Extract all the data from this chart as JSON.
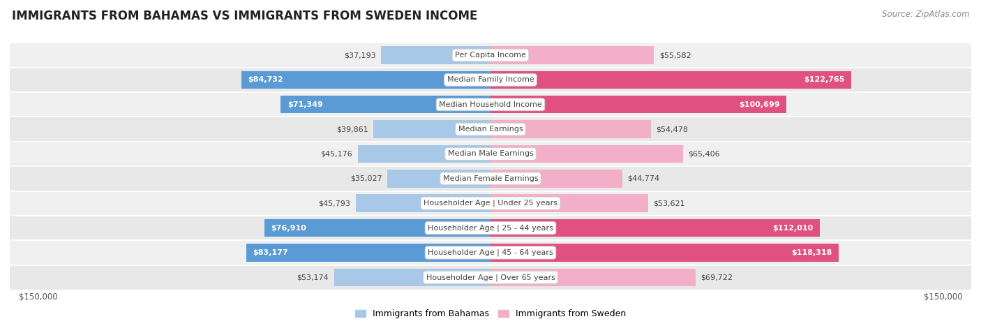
{
  "title": "IMMIGRANTS FROM BAHAMAS VS IMMIGRANTS FROM SWEDEN INCOME",
  "source": "Source: ZipAtlas.com",
  "categories": [
    "Per Capita Income",
    "Median Family Income",
    "Median Household Income",
    "Median Earnings",
    "Median Male Earnings",
    "Median Female Earnings",
    "Householder Age | Under 25 years",
    "Householder Age | 25 - 44 years",
    "Householder Age | 45 - 64 years",
    "Householder Age | Over 65 years"
  ],
  "bahamas_values": [
    37193,
    84732,
    71349,
    39861,
    45176,
    35027,
    45793,
    76910,
    83177,
    53174
  ],
  "sweden_values": [
    55582,
    122765,
    100699,
    54478,
    65406,
    44774,
    53621,
    112010,
    118318,
    69722
  ],
  "bahamas_labels": [
    "$37,193",
    "$84,732",
    "$71,349",
    "$39,861",
    "$45,176",
    "$35,027",
    "$45,793",
    "$76,910",
    "$83,177",
    "$53,174"
  ],
  "sweden_labels": [
    "$55,582",
    "$122,765",
    "$100,699",
    "$54,478",
    "$65,406",
    "$44,774",
    "$53,621",
    "$112,010",
    "$118,318",
    "$69,722"
  ],
  "bahamas_color_light": "#a8c8e8",
  "bahamas_color_dark": "#5b9bd5",
  "sweden_color_light": "#f4afc8",
  "sweden_color_dark": "#e05080",
  "max_value": 150000,
  "axis_label_left": "$150,000",
  "axis_label_right": "$150,000",
  "legend_bahamas": "Immigrants from Bahamas",
  "legend_sweden": "Immigrants from Sweden",
  "background_color": "#ffffff",
  "row_bg_even": "#f0f0f0",
  "row_bg_odd": "#e8e8e8",
  "title_fontsize": 12,
  "source_fontsize": 8.5,
  "bar_label_fontsize": 8,
  "category_fontsize": 8,
  "bahamas_large_threshold": 60000,
  "sweden_large_threshold": 80000
}
